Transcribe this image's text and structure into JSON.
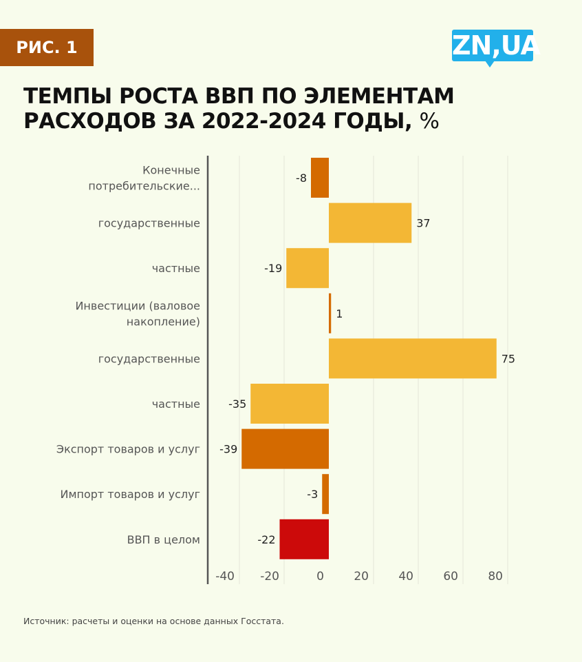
{
  "badge": "РИС. 1",
  "logo": "ZN,UA",
  "title_line1": "ТЕМПЫ РОСТА ВВП ПО ЭЛЕМЕНТАМ",
  "title_line2": "РАСХОДОВ ЗА 2022-2024 ГОДЫ,",
  "title_unit": "%",
  "source": "Источник: расчеты и оценки на основе данных Госстата.",
  "colors": {
    "dark_orange": "#d46a00",
    "yellow": "#f3b735",
    "red": "#cc0a0a",
    "background": "#f8fcec"
  },
  "chart_data": {
    "type": "bar",
    "orientation": "horizontal",
    "categories": [
      [
        "Конечные",
        "потребительские..."
      ],
      [
        "государственные"
      ],
      [
        "частные"
      ],
      [
        "Инвестиции (валовое",
        "накопление)"
      ],
      [
        "государственные"
      ],
      [
        "частные"
      ],
      [
        "Экспорт товаров и услуг"
      ],
      [
        "Импорт товаров и услуг"
      ],
      [
        "ВВП в целом"
      ]
    ],
    "values": [
      -8,
      37,
      -19,
      1,
      75,
      -35,
      -39,
      -3,
      -22
    ],
    "bar_colors": [
      "#d46a00",
      "#f3b735",
      "#f3b735",
      "#d46a00",
      "#f3b735",
      "#f3b735",
      "#d46a00",
      "#d46a00",
      "#cc0a0a"
    ],
    "xticks": [
      -40,
      -20,
      0,
      20,
      40,
      60,
      80
    ],
    "xlim": [
      -54,
      80
    ],
    "grid": true
  }
}
